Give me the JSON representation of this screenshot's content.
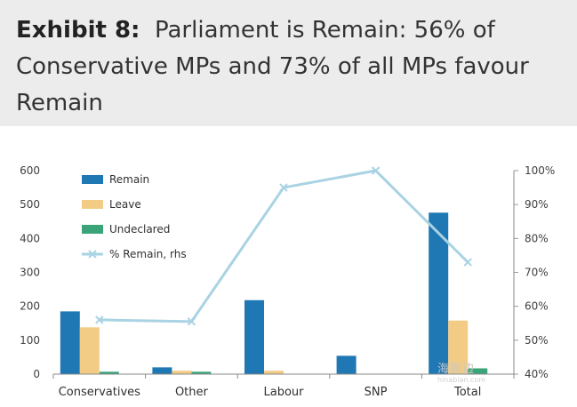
{
  "header": {
    "exhibit_label": "Exhibit 8:",
    "title_text": "Parliament is Remain: 56% of Conservative MPs and 73% of all MPs favour Remain"
  },
  "watermark": {
    "main": "海那边",
    "sub": "hinabian.com"
  },
  "chart_data": {
    "type": "bar",
    "categories": [
      "Conservatives",
      "Other",
      "Labour",
      "SNP",
      "Total"
    ],
    "series": [
      {
        "name": "Remain",
        "axis": "left",
        "color": "#1f77b4",
        "values": [
          185,
          20,
          218,
          54,
          476
        ]
      },
      {
        "name": "Leave",
        "axis": "left",
        "color": "#f2cc85",
        "values": [
          138,
          10,
          10,
          0,
          158
        ]
      },
      {
        "name": "Undeclared",
        "axis": "left",
        "color": "#3aa378",
        "values": [
          7,
          7,
          0,
          0,
          17
        ]
      },
      {
        "name": "% Remain, rhs",
        "axis": "right",
        "type": "line",
        "color": "#a9d3e3",
        "values": [
          56,
          55.5,
          95,
          100,
          73
        ]
      }
    ],
    "ylim": [
      0,
      600
    ],
    "yticks": [
      0,
      100,
      200,
      300,
      400,
      500,
      600
    ],
    "y2lim": [
      40,
      100
    ],
    "y2ticks": [
      "40%",
      "50%",
      "60%",
      "70%",
      "80%",
      "90%",
      "100%"
    ],
    "y2tick_values": [
      40,
      50,
      60,
      70,
      80,
      90,
      100
    ],
    "legend_position": "top-left",
    "grid": false
  }
}
